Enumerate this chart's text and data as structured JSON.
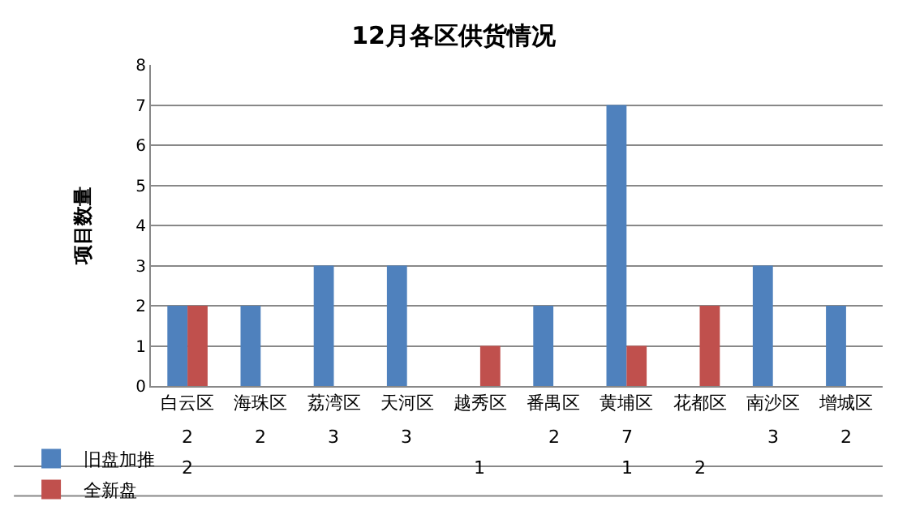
{
  "chart_data": {
    "type": "bar",
    "title": "12月各区供货情况",
    "ylabel": "项目数量",
    "categories": [
      "白云区",
      "海珠区",
      "荔湾区",
      "天河区",
      "越秀区",
      "番禺区",
      "黄埔区",
      "花都区",
      "南沙区",
      "增城区"
    ],
    "series": [
      {
        "name": "旧盘加推",
        "color": "#4f81bd",
        "values": [
          2,
          2,
          3,
          3,
          null,
          2,
          7,
          null,
          3,
          2
        ]
      },
      {
        "name": "全新盘",
        "color": "#c0504d",
        "values": [
          2,
          null,
          null,
          null,
          1,
          null,
          1,
          2,
          null,
          null
        ]
      }
    ],
    "ylim": [
      0,
      8
    ],
    "yticks": [
      0,
      1,
      2,
      3,
      4,
      5,
      6,
      7,
      8
    ],
    "grid": "y",
    "legend": "bottom left",
    "data_labels": true
  }
}
